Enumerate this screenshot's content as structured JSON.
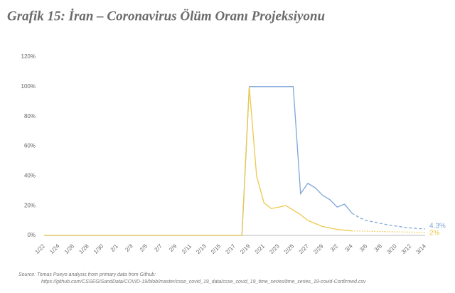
{
  "chart_data": {
    "type": "line",
    "title": "Grafik 15: İran – Coronavirus Ölüm Oranı Projeksiyonu",
    "categories": [
      "1/22",
      null,
      "1/24",
      null,
      "1/26",
      null,
      "1/28",
      null,
      "1/30",
      null,
      "2/1",
      null,
      "2/3",
      null,
      "2/5",
      null,
      "2/7",
      null,
      "2/9",
      null,
      "2/11",
      null,
      "2/13",
      null,
      "2/15",
      null,
      "2/17",
      null,
      "2/19",
      null,
      "2/21",
      null,
      "2/23",
      null,
      "2/25",
      null,
      "2/27",
      null,
      "2/29",
      null,
      "3/2",
      null,
      "3/4",
      null,
      "3/6",
      null,
      "3/8",
      null,
      "3/10",
      null,
      "3/12",
      null,
      "3/14"
    ],
    "series": [
      {
        "color": "#7ea6d8",
        "dash": "solid",
        "values": [
          0,
          0,
          0,
          0,
          0,
          0,
          0,
          0,
          0,
          0,
          0,
          0,
          0,
          0,
          0,
          0,
          0,
          0,
          0,
          0,
          0,
          0,
          0,
          0,
          0,
          0,
          0,
          0,
          100,
          100,
          100,
          100,
          100,
          100,
          100,
          28,
          35,
          32,
          27,
          24,
          19,
          21,
          15,
          null,
          null,
          null,
          null,
          null,
          null,
          null,
          null,
          null,
          null
        ]
      },
      {
        "color": "#7ea6d8",
        "dash": "dashed",
        "values": [
          null,
          null,
          null,
          null,
          null,
          null,
          null,
          null,
          null,
          null,
          null,
          null,
          null,
          null,
          null,
          null,
          null,
          null,
          null,
          null,
          null,
          null,
          null,
          null,
          null,
          null,
          null,
          null,
          null,
          null,
          null,
          null,
          null,
          null,
          null,
          null,
          null,
          null,
          null,
          null,
          null,
          null,
          15,
          12,
          10,
          9,
          8,
          7,
          6.3,
          5.6,
          5,
          4.6,
          4.3
        ],
        "value_labels": [
          null,
          null,
          null,
          null,
          null,
          null,
          null,
          null,
          null,
          null,
          null,
          null,
          null,
          null,
          null,
          null,
          null,
          null,
          null,
          null,
          null,
          null,
          null,
          null,
          null,
          null,
          null,
          null,
          null,
          null,
          null,
          null,
          null,
          null,
          null,
          null,
          null,
          null,
          null,
          null,
          null,
          null,
          null,
          null,
          null,
          null,
          null,
          null,
          null,
          null,
          null,
          null,
          "4.3%"
        ]
      },
      {
        "color": "#ecc94b",
        "dash": "solid",
        "values": [
          0,
          0,
          0,
          0,
          0,
          0,
          0,
          0,
          0,
          0,
          0,
          0,
          0,
          0,
          0,
          0,
          0,
          0,
          0,
          0,
          0,
          0,
          0,
          0,
          0,
          0,
          0,
          0,
          100,
          40,
          22,
          18,
          19,
          20,
          17,
          14,
          10,
          8,
          6,
          5,
          4,
          3.5,
          3,
          null,
          null,
          null,
          null,
          null,
          null,
          null,
          null,
          null,
          null
        ]
      },
      {
        "color": "#ecc94b",
        "dash": "dotted",
        "values": [
          null,
          null,
          null,
          null,
          null,
          null,
          null,
          null,
          null,
          null,
          null,
          null,
          null,
          null,
          null,
          null,
          null,
          null,
          null,
          null,
          null,
          null,
          null,
          null,
          null,
          null,
          null,
          null,
          null,
          null,
          null,
          null,
          null,
          null,
          null,
          null,
          null,
          null,
          null,
          null,
          null,
          null,
          3,
          2.9,
          2.8,
          2.7,
          2.6,
          2.5,
          2.4,
          2.3,
          2.2,
          2.1,
          2
        ],
        "value_labels": [
          null,
          null,
          null,
          null,
          null,
          null,
          null,
          null,
          null,
          null,
          null,
          null,
          null,
          null,
          null,
          null,
          null,
          null,
          null,
          null,
          null,
          null,
          null,
          null,
          null,
          null,
          null,
          null,
          null,
          null,
          null,
          null,
          null,
          null,
          null,
          null,
          null,
          null,
          null,
          null,
          null,
          null,
          null,
          null,
          null,
          null,
          null,
          null,
          null,
          null,
          null,
          null,
          "2%"
        ]
      }
    ],
    "ylim": [
      0,
      120
    ],
    "yticks": [
      {
        "value": 0,
        "label": "0%"
      },
      {
        "value": 20,
        "label": "20%"
      },
      {
        "value": 40,
        "label": "40%"
      },
      {
        "value": 60,
        "label": "60%"
      },
      {
        "value": 80,
        "label": "80%"
      },
      {
        "value": 100,
        "label": "100%"
      },
      {
        "value": 120,
        "label": "120%"
      }
    ],
    "grid": false,
    "source": [
      "Source: Tomas Pueyo analysis from primary data from Github:",
      "https://github.com/CSSEGISandData/COVID-19/blob/master/csse_covid_19_data/csse_covid_19_time_series/time_series_19-covid-Confirmed.csv"
    ]
  }
}
